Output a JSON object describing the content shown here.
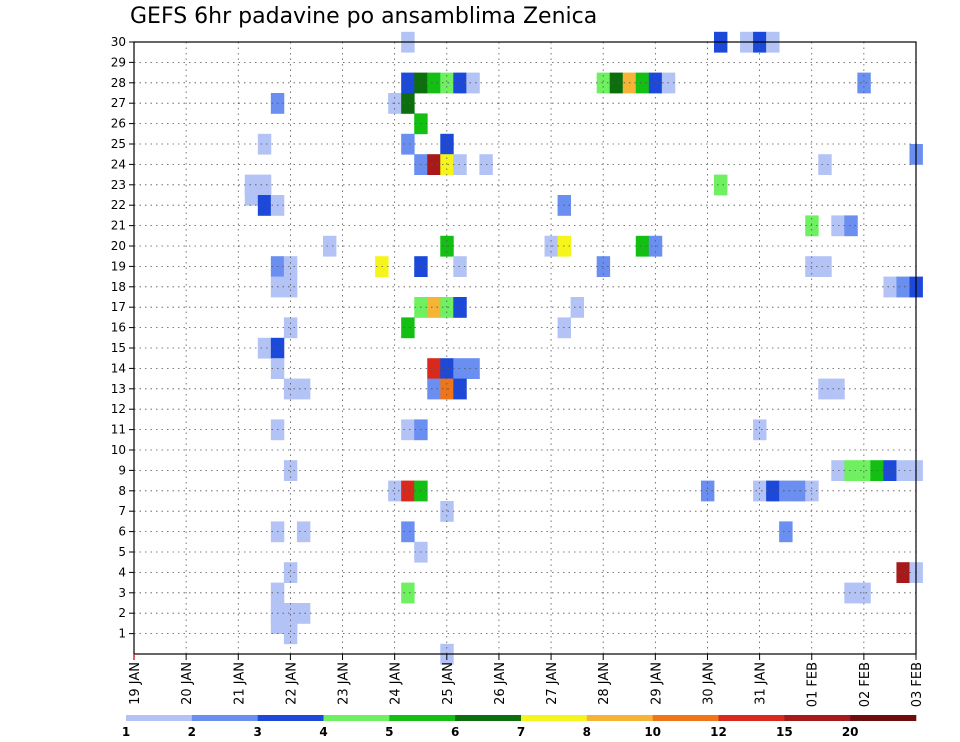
{
  "chart_data": {
    "type": "heatmap",
    "title": "GEFS 6hr padavine po ansamblima Zenica",
    "xlabel": "",
    "ylabel": "",
    "x_ticks": [
      "19 JAN",
      "20 JAN",
      "21 JAN",
      "22 JAN",
      "23 JAN",
      "24 JAN",
      "25 JAN",
      "26 JAN",
      "27 JAN",
      "28 JAN",
      "29 JAN",
      "30 JAN",
      "31 JAN",
      "01 FEB",
      "02 FEB",
      "03 FEB"
    ],
    "x_range_steps": [
      0,
      60
    ],
    "steps_per_day": 4,
    "y_ticks": [
      "1",
      "2",
      "3",
      "4",
      "5",
      "6",
      "7",
      "8",
      "9",
      "10",
      "11",
      "12",
      "13",
      "14",
      "15",
      "16",
      "17",
      "18",
      "19",
      "20",
      "21",
      "22",
      "23",
      "24",
      "25",
      "26",
      "27",
      "28",
      "29",
      "30"
    ],
    "y_range": [
      0,
      30
    ],
    "grid": true,
    "colorbar": {
      "position": "bottom",
      "labels": [
        "1",
        "2",
        "3",
        "4",
        "5",
        "6",
        "7",
        "8",
        "10",
        "12",
        "15",
        "20"
      ],
      "colors": [
        "#b3c3f5",
        "#6a8ff0",
        "#1c49d9",
        "#6ef060",
        "#12bf12",
        "#0d6e0d",
        "#f5f51c",
        "#f5b435",
        "#f07518",
        "#d9281c",
        "#a81a1a",
        "#6e0d0d"
      ]
    },
    "cells": [
      [
        21,
        30,
        1
      ],
      [
        45,
        30,
        3
      ],
      [
        47,
        30,
        1
      ],
      [
        48,
        30,
        3
      ],
      [
        49,
        30,
        1
      ],
      [
        21,
        28,
        3
      ],
      [
        22,
        28,
        6
      ],
      [
        23,
        28,
        5
      ],
      [
        24,
        28,
        4
      ],
      [
        25,
        28,
        3
      ],
      [
        26,
        28,
        1
      ],
      [
        36,
        28,
        4
      ],
      [
        37,
        28,
        6
      ],
      [
        38,
        28,
        8
      ],
      [
        39,
        28,
        5
      ],
      [
        40,
        28,
        3
      ],
      [
        41,
        28,
        1
      ],
      [
        56,
        28,
        2
      ],
      [
        11,
        27,
        2
      ],
      [
        20,
        27,
        1
      ],
      [
        21,
        27,
        6
      ],
      [
        22,
        26,
        5
      ],
      [
        10,
        25,
        1
      ],
      [
        21,
        25,
        2
      ],
      [
        24,
        25,
        3
      ],
      [
        60,
        24.5,
        2
      ],
      [
        22,
        24,
        2
      ],
      [
        23,
        24,
        11
      ],
      [
        24,
        24,
        7
      ],
      [
        25,
        24,
        1
      ],
      [
        27,
        24,
        1
      ],
      [
        53,
        24,
        1
      ],
      [
        9,
        23,
        1
      ],
      [
        10,
        23,
        1
      ],
      [
        45,
        23,
        4
      ],
      [
        9,
        22.5,
        1
      ],
      [
        10,
        22.5,
        1
      ],
      [
        10,
        22,
        3
      ],
      [
        11,
        22,
        1
      ],
      [
        33,
        22,
        2
      ],
      [
        52,
        21,
        4
      ],
      [
        54,
        21,
        1
      ],
      [
        55,
        21,
        2
      ],
      [
        15,
        20,
        1
      ],
      [
        32,
        20,
        1
      ],
      [
        33,
        20,
        7
      ],
      [
        39,
        20,
        5
      ],
      [
        40,
        20,
        2
      ],
      [
        24,
        20,
        5
      ],
      [
        11,
        19,
        2
      ],
      [
        12,
        19,
        1
      ],
      [
        19,
        19,
        7
      ],
      [
        22,
        19,
        3
      ],
      [
        25,
        19,
        1
      ],
      [
        36,
        19,
        2
      ],
      [
        52,
        19,
        1
      ],
      [
        53,
        19,
        1
      ],
      [
        11,
        18,
        1
      ],
      [
        12,
        18,
        1
      ],
      [
        58,
        18,
        1
      ],
      [
        59,
        18,
        2
      ],
      [
        60,
        18,
        3
      ],
      [
        22,
        17,
        4
      ],
      [
        23,
        17,
        8
      ],
      [
        24,
        17,
        4
      ],
      [
        25,
        17,
        3
      ],
      [
        34,
        17,
        1
      ],
      [
        12,
        16,
        1
      ],
      [
        21,
        16,
        5
      ],
      [
        33,
        16,
        1
      ],
      [
        10,
        15,
        1
      ],
      [
        11,
        15,
        3
      ],
      [
        11,
        14,
        1
      ],
      [
        23,
        14,
        10
      ],
      [
        24,
        14,
        3
      ],
      [
        25,
        14,
        2
      ],
      [
        26,
        14,
        2
      ],
      [
        12,
        13,
        1
      ],
      [
        13,
        13,
        1
      ],
      [
        23,
        13,
        2
      ],
      [
        24,
        13,
        9
      ],
      [
        25,
        13,
        3
      ],
      [
        53,
        13,
        1
      ],
      [
        54,
        13,
        1
      ],
      [
        11,
        11,
        1
      ],
      [
        21,
        11,
        1
      ],
      [
        22,
        11,
        2
      ],
      [
        48,
        11,
        1
      ],
      [
        12,
        9,
        1
      ],
      [
        54,
        9,
        1
      ],
      [
        55,
        9,
        4
      ],
      [
        56,
        9,
        4
      ],
      [
        57,
        9,
        5
      ],
      [
        58,
        9,
        3
      ],
      [
        59,
        9,
        1
      ],
      [
        60,
        9,
        1
      ],
      [
        20,
        8,
        1
      ],
      [
        21,
        8,
        10
      ],
      [
        22,
        8,
        5
      ],
      [
        44,
        8,
        2
      ],
      [
        48,
        8,
        1
      ],
      [
        49,
        8,
        3
      ],
      [
        50,
        8,
        2
      ],
      [
        51,
        8,
        2
      ],
      [
        52,
        8,
        1
      ],
      [
        24,
        7,
        1
      ],
      [
        11,
        6,
        1
      ],
      [
        13,
        6,
        1
      ],
      [
        21,
        6,
        2
      ],
      [
        50,
        6,
        2
      ],
      [
        22,
        5,
        1
      ],
      [
        12,
        4,
        1
      ],
      [
        59,
        4,
        11
      ],
      [
        60,
        4,
        1
      ],
      [
        11,
        3,
        1
      ],
      [
        21,
        3,
        4
      ],
      [
        55,
        3,
        1
      ],
      [
        56,
        3,
        1
      ],
      [
        11,
        2,
        1
      ],
      [
        12,
        2,
        1
      ],
      [
        13,
        2,
        1
      ],
      [
        11,
        1.5,
        1
      ],
      [
        12,
        1.5,
        1
      ],
      [
        12,
        1,
        1
      ],
      [
        24,
        0,
        1
      ]
    ]
  }
}
